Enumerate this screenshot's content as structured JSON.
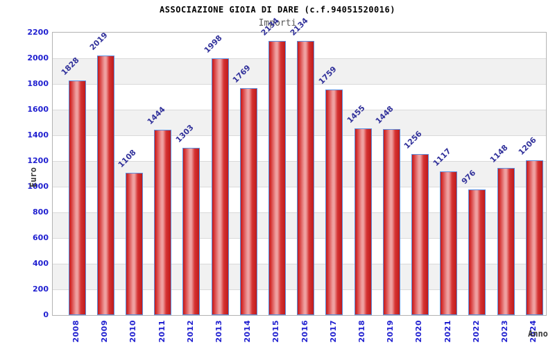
{
  "chart_data": {
    "type": "bar",
    "title": "ASSOCIAZIONE GIOIA DI DARE (c.f.94051520016)",
    "subtitle": "Importi",
    "xlabel": "Anno",
    "ylabel": "Euro",
    "categories": [
      "2008",
      "2009",
      "2010",
      "2011",
      "2012",
      "2013",
      "2014",
      "2015",
      "2016",
      "2017",
      "2018",
      "2019",
      "2020",
      "2021",
      "2022",
      "2023",
      "2024"
    ],
    "values": [
      1828,
      2019,
      1108,
      1444,
      1303,
      1998,
      1769,
      2134,
      2134,
      1759,
      1455,
      1448,
      1256,
      1117,
      976,
      1148,
      1206
    ],
    "ylim": [
      0,
      2200
    ],
    "ytick_step": 200,
    "ytick_labels": [
      "0",
      "200",
      "400",
      "600",
      "800",
      "1000",
      "1200",
      "1400",
      "1600",
      "1800",
      "2000",
      "2200"
    ],
    "grid": "horizontal gridlines every 200 with alternating gray bands",
    "legend_position": "none",
    "colors": {
      "bar_edge": "#bf1b1b",
      "bar_mid": "#d53232",
      "bar_highlight": "#efa0a0",
      "bar_border": "#5b8ede",
      "band_gray": "#f1f1f1",
      "gridline": "#d9d9d9",
      "plot_border": "#b3b3b3",
      "tick_label_blue": "#2020d0",
      "value_label_navy": "#32329b",
      "axis_title_gray": "#3a3a3a",
      "subtitle_gray": "#555555",
      "title_black": "#000000"
    }
  }
}
